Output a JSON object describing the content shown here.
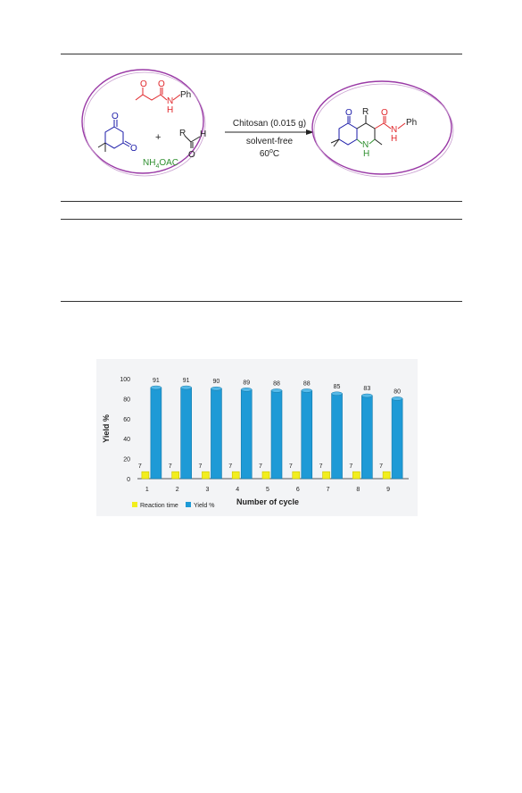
{
  "scheme": {
    "reagent_left": "NH4OAC",
    "reagent_left_base": "NH",
    "reagent_left_sub": "4",
    "reagent_left_rest": "OAC",
    "plus": "+",
    "aldehyde_r": "R",
    "aldehyde_h": "H",
    "aldehyde_o": "O",
    "amide_n": "N",
    "amide_h": "H",
    "amide_ph": "Ph",
    "ketone_o": "O",
    "product_r": "R",
    "product_nh_n": "N",
    "product_nh_h": "H",
    "arrow_top": "Chitosan (0.015 g)",
    "arrow_mid": "solvent-free",
    "arrow_temp_base": "60",
    "arrow_temp_sup": "o",
    "arrow_temp_unit": "C",
    "colors": {
      "red": "#e0262a",
      "blue": "#1a1aa8",
      "green": "#2f8f2f",
      "oval": "#9a3aa6"
    }
  },
  "chart_data": {
    "type": "bar",
    "xlabel": "Number of cycle",
    "ylabel": "Yield %",
    "categories": [
      "1",
      "2",
      "3",
      "4",
      "5",
      "6",
      "7",
      "8",
      "9"
    ],
    "yticks": [
      0,
      20,
      40,
      60,
      80,
      100
    ],
    "ylim": [
      0,
      100
    ],
    "grid": false,
    "legend_position": "bottom-left",
    "series": [
      {
        "name": "Reaction time",
        "values": [
          7,
          7,
          7,
          7,
          7,
          7,
          7,
          7,
          7
        ],
        "color": "#f2ee1e"
      },
      {
        "name": "Yield %",
        "values": [
          91,
          91,
          90,
          89,
          88,
          88,
          85,
          83,
          80
        ],
        "color": "#1e9ad6"
      }
    ]
  }
}
